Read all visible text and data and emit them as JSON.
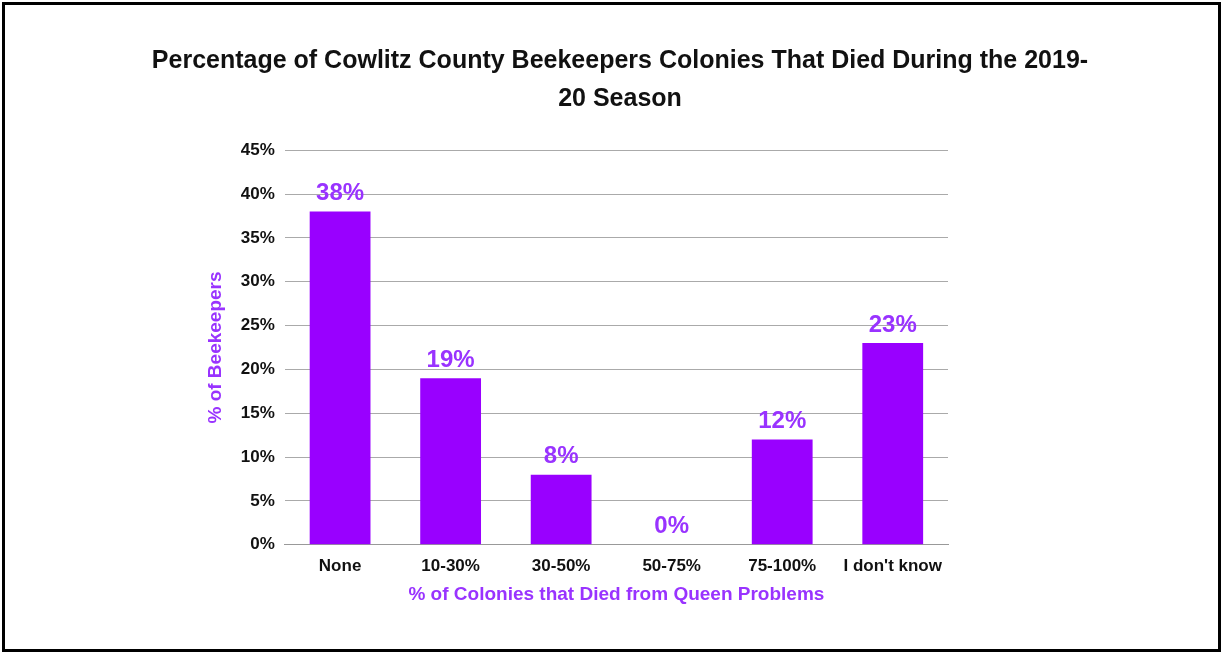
{
  "chart_data": {
    "type": "bar",
    "title": "Percentage of Cowlitz County Beekeepers Colonies That Died During the 2019-20 Season",
    "xlabel": "% of Colonies that Died from Queen Problems",
    "ylabel": "% of Beekeepers",
    "categories": [
      "None",
      "10-30%",
      "30-50%",
      "50-75%",
      "75-100%",
      "I don't know"
    ],
    "values": [
      38,
      19,
      8,
      0,
      12,
      23
    ],
    "value_labels": [
      "38%",
      "19%",
      "8%",
      "0%",
      "12%",
      "23%"
    ],
    "color": "#9900ff",
    "ylim": [
      0,
      45
    ],
    "yticks": [
      {
        "value": 0,
        "label": "0%"
      },
      {
        "value": 5,
        "label": "5%"
      },
      {
        "value": 10,
        "label": "10%"
      },
      {
        "value": 15,
        "label": "15%"
      },
      {
        "value": 20,
        "label": "20%"
      },
      {
        "value": 25,
        "label": "25%"
      },
      {
        "value": 30,
        "label": "30%"
      },
      {
        "value": 35,
        "label": "35%"
      },
      {
        "value": 40,
        "label": "40%"
      },
      {
        "value": 45,
        "label": "45%"
      }
    ],
    "grid": "y",
    "legend": false
  }
}
